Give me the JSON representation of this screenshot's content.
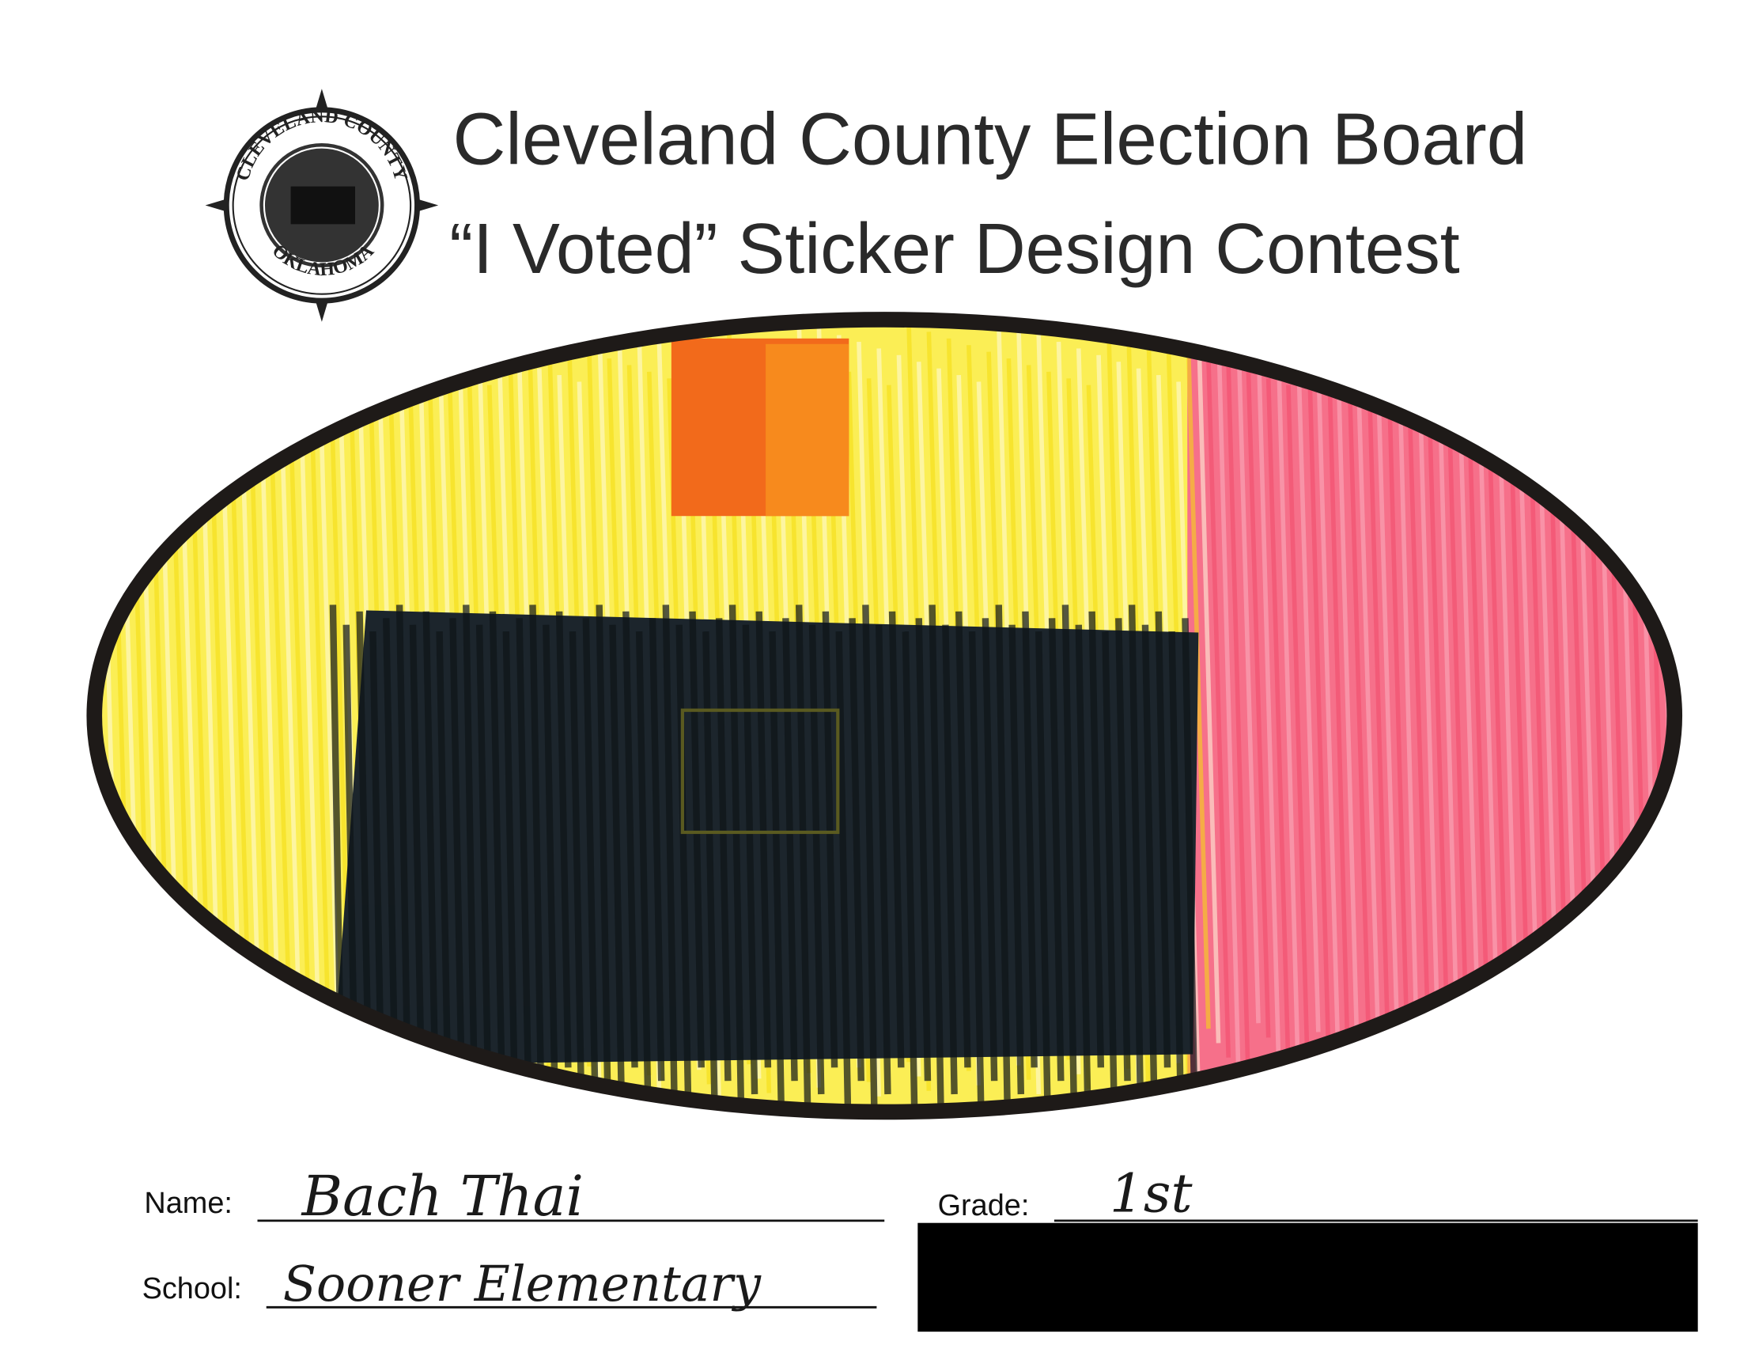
{
  "header": {
    "title": "Cleveland County Election Board",
    "subtitle": "“I Voted” Sticker Design Contest"
  },
  "seal": {
    "top_text": "CLEVELAND COUNTY",
    "bottom_text": "OKLAHOMA"
  },
  "form": {
    "name": {
      "label": "Name:",
      "value": "Bach Thai"
    },
    "grade": {
      "label": "Grade:",
      "value": "1st"
    },
    "school": {
      "label": "School:",
      "value": "Sooner Elementary"
    }
  }
}
